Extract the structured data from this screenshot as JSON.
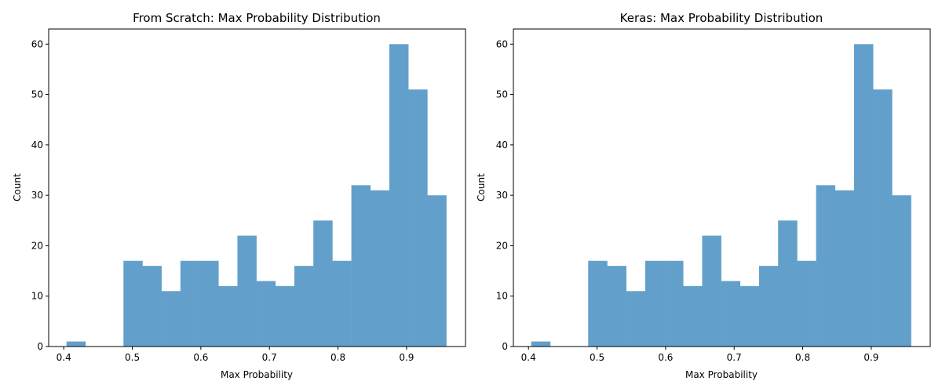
{
  "chart_data": [
    {
      "type": "bar",
      "title": "From Scratch: Max Probability Distribution",
      "xlabel": "Max Probability",
      "ylabel": "Count",
      "xlim": [
        0.378,
        0.986
      ],
      "ylim": [
        0,
        63
      ],
      "xticks": [
        0.4,
        0.5,
        0.6,
        0.7,
        0.8,
        0.9
      ],
      "xtick_labels": [
        "0.4",
        "0.5",
        "0.6",
        "0.7",
        "0.8",
        "0.9"
      ],
      "yticks": [
        0,
        10,
        20,
        30,
        40,
        50,
        60
      ],
      "ytick_labels": [
        "0",
        "10",
        "20",
        "30",
        "40",
        "50",
        "60"
      ],
      "bin_edges": [
        0.404,
        0.4317,
        0.4594,
        0.4871,
        0.5148,
        0.5425,
        0.5702,
        0.5979,
        0.6256,
        0.6533,
        0.681,
        0.7087,
        0.7364,
        0.7641,
        0.7918,
        0.8195,
        0.8472,
        0.8749,
        0.9026,
        0.9303,
        0.958
      ],
      "values": [
        1,
        0,
        0,
        17,
        16,
        11,
        17,
        17,
        12,
        22,
        13,
        12,
        16,
        25,
        17,
        32,
        31,
        60,
        51,
        30
      ],
      "color": "#62a0cb",
      "grid": false,
      "legend": false
    },
    {
      "type": "bar",
      "title": "Keras: Max Probability Distribution",
      "xlabel": "Max Probability",
      "ylabel": "Count",
      "xlim": [
        0.378,
        0.986
      ],
      "ylim": [
        0,
        63
      ],
      "xticks": [
        0.4,
        0.5,
        0.6,
        0.7,
        0.8,
        0.9
      ],
      "xtick_labels": [
        "0.4",
        "0.5",
        "0.6",
        "0.7",
        "0.8",
        "0.9"
      ],
      "yticks": [
        0,
        10,
        20,
        30,
        40,
        50,
        60
      ],
      "ytick_labels": [
        "0",
        "10",
        "20",
        "30",
        "40",
        "50",
        "60"
      ],
      "bin_edges": [
        0.404,
        0.4317,
        0.4594,
        0.4871,
        0.5148,
        0.5425,
        0.5702,
        0.5979,
        0.6256,
        0.6533,
        0.681,
        0.7087,
        0.7364,
        0.7641,
        0.7918,
        0.8195,
        0.8472,
        0.8749,
        0.9026,
        0.9303,
        0.958
      ],
      "values": [
        1,
        0,
        0,
        17,
        16,
        11,
        17,
        17,
        12,
        22,
        13,
        12,
        16,
        25,
        17,
        32,
        31,
        60,
        51,
        30
      ],
      "color": "#62a0cb",
      "grid": false,
      "legend": false
    }
  ]
}
